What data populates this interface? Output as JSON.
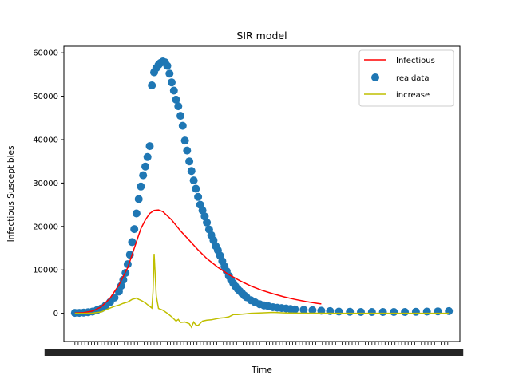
{
  "chart_data": {
    "type": "line",
    "title": "SIR model",
    "xlabel": "Time",
    "ylabel": "Infectious Susceptibles",
    "ylim": [
      -6500,
      61500
    ],
    "xlim": [
      -5,
      175
    ],
    "grid": false,
    "legend_position": "top-right",
    "y_ticks": [
      "0",
      "10000",
      "20000",
      "30000",
      "40000",
      "50000",
      "60000"
    ],
    "y_tick_values": [
      0,
      10000,
      20000,
      30000,
      40000,
      50000,
      60000
    ],
    "x_tick_note": "x tick labels are unreadable overlapping date strings",
    "series": [
      {
        "name": "Infectious",
        "style": "line",
        "color": "#ff0000",
        "x": [
          0,
          4,
          8,
          12,
          16,
          20,
          24,
          26,
          28,
          30,
          32,
          34,
          36,
          38,
          40,
          44,
          48,
          52,
          56,
          60,
          65,
          70,
          75,
          80,
          85,
          90,
          95,
          100,
          105,
          110,
          112
        ],
        "y": [
          100,
          150,
          500,
          1500,
          3500,
          6500,
          10500,
          13500,
          16500,
          19500,
          21500,
          23000,
          23700,
          23800,
          23400,
          21500,
          19000,
          16800,
          14600,
          12600,
          10600,
          8900,
          7500,
          6300,
          5300,
          4500,
          3800,
          3200,
          2700,
          2300,
          2150
        ]
      },
      {
        "name": "realdata",
        "style": "scatter",
        "color": "#1f77b4",
        "x": [
          0,
          2,
          4,
          6,
          8,
          10,
          12,
          14,
          16,
          18,
          20,
          21,
          22,
          23,
          24,
          25,
          26,
          27,
          28,
          29,
          30,
          31,
          32,
          33,
          34,
          35,
          36,
          37,
          38,
          39,
          40,
          41,
          42,
          43,
          44,
          45,
          46,
          47,
          48,
          49,
          50,
          51,
          52,
          53,
          54,
          55,
          56,
          57,
          58,
          59,
          60,
          61,
          62,
          63,
          64,
          65,
          66,
          67,
          68,
          69,
          70,
          71,
          72,
          73,
          74,
          75,
          76,
          77,
          78,
          80,
          82,
          84,
          86,
          88,
          90,
          92,
          94,
          96,
          98,
          100,
          104,
          108,
          112,
          116,
          120,
          125,
          130,
          135,
          140,
          145,
          150,
          155,
          160,
          165,
          170
        ],
        "y": [
          100,
          100,
          150,
          250,
          400,
          700,
          1100,
          1800,
          2600,
          3600,
          5000,
          6300,
          7700,
          9300,
          11300,
          13500,
          16400,
          19400,
          23000,
          26300,
          29200,
          31800,
          33800,
          36000,
          38500,
          52500,
          55500,
          56500,
          57200,
          57700,
          58000,
          57800,
          57000,
          55200,
          53200,
          51300,
          49200,
          47700,
          45500,
          43200,
          39800,
          37500,
          35000,
          32800,
          30600,
          28700,
          26800,
          25000,
          23700,
          22300,
          20900,
          19300,
          18000,
          16800,
          15500,
          14500,
          13300,
          12000,
          10800,
          9700,
          8600,
          7700,
          6900,
          6200,
          5600,
          5100,
          4600,
          4100,
          3700,
          3000,
          2500,
          2100,
          1800,
          1600,
          1400,
          1300,
          1200,
          1100,
          1000,
          900,
          800,
          700,
          600,
          500,
          400,
          350,
          300,
          300,
          300,
          300,
          300,
          350,
          400,
          450,
          500
        ]
      },
      {
        "name": "increase",
        "style": "line",
        "color": "#bfbf00",
        "x": [
          0,
          4,
          8,
          12,
          14,
          16,
          18,
          20,
          22,
          24,
          26,
          28,
          29,
          30,
          31,
          32,
          33,
          34,
          35,
          35.5,
          36,
          37,
          38,
          40,
          42,
          44,
          46,
          47,
          48,
          50,
          52,
          53,
          54,
          55,
          56,
          58,
          60,
          62,
          64,
          66,
          68,
          70,
          72,
          74,
          76,
          78,
          80,
          85,
          90,
          95,
          100,
          110,
          120,
          130,
          140,
          150,
          160,
          170
        ],
        "y": [
          0,
          0,
          50,
          300,
          800,
          1200,
          1600,
          1900,
          2300,
          2600,
          3200,
          3500,
          3200,
          3000,
          2700,
          2400,
          2000,
          1600,
          1200,
          5000,
          13700,
          4000,
          1100,
          700,
          0,
          -800,
          -1800,
          -1400,
          -2100,
          -2000,
          -2400,
          -3200,
          -2000,
          -2700,
          -2800,
          -1800,
          -1600,
          -1500,
          -1300,
          -1100,
          -1000,
          -800,
          -300,
          -300,
          -200,
          -100,
          0,
          100,
          200,
          100,
          50,
          20,
          0,
          0,
          0,
          0,
          0,
          0
        ]
      }
    ]
  }
}
